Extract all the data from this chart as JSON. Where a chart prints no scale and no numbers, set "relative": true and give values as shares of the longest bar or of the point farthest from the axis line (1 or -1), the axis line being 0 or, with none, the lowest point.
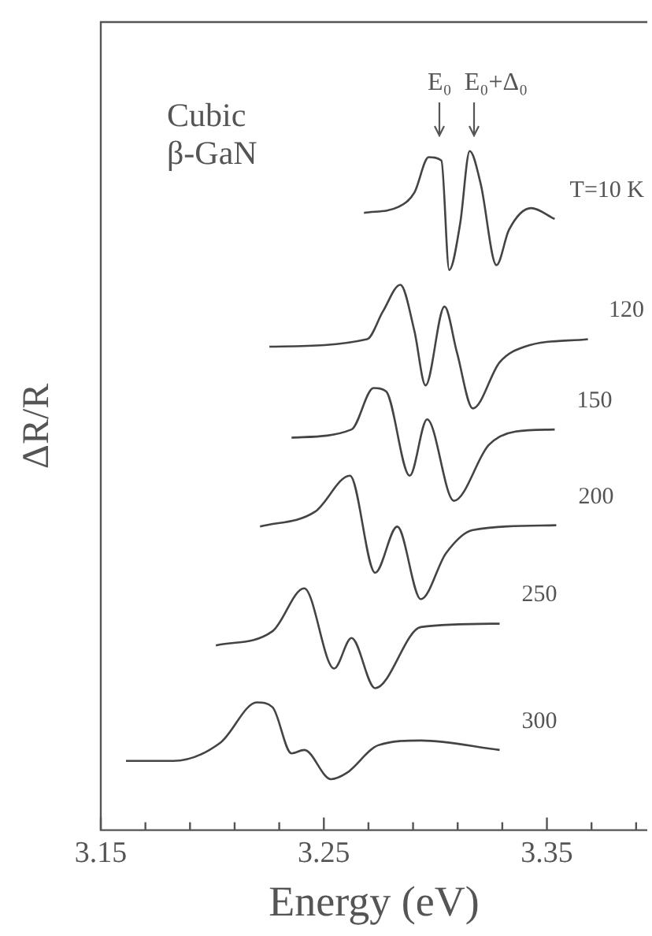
{
  "chart_data": {
    "type": "line",
    "xlabel": "Energy (eV)",
    "ylabel": "ΔR/R",
    "relative": true,
    "legend": false,
    "marker": "none",
    "grid": false,
    "xlim": [
      3.15,
      3.395
    ],
    "xticks": [
      3.15,
      {
        "value": 3.17,
        "label": null
      },
      {
        "value": 3.19,
        "label": null
      },
      {
        "value": 3.21,
        "label": null
      },
      {
        "value": 3.23,
        "label": null
      },
      3.25,
      {
        "value": 3.27,
        "label": null
      },
      {
        "value": 3.29,
        "label": null
      },
      {
        "value": 3.31,
        "label": null
      },
      {
        "value": 3.33,
        "label": null
      },
      3.35,
      {
        "value": 3.37,
        "label": null
      },
      {
        "value": 3.39,
        "label": null
      }
    ],
    "annotations": [
      "Cubic β-GaN",
      "E₀",
      "E₀+Δ₀"
    ],
    "series": [
      {
        "name": "T=10 K",
        "color": "#444444",
        "x": [
          3.268,
          3.2836,
          3.2906,
          3.297,
          3.3027,
          3.3062,
          3.3111,
          3.3154,
          3.3203,
          3.3274,
          3.333,
          3.3429,
          3.3535
        ],
        "values": [
          0.909,
          0.918,
          0.939,
          0.991,
          0.986,
          0.825,
          0.893,
          1.0,
          0.952,
          0.832,
          0.884,
          0.916,
          0.9
        ]
      },
      {
        "name": "120",
        "color": "#444444",
        "x": [
          3.2256,
          3.2694,
          3.2765,
          3.2843,
          3.2906,
          3.2956,
          3.3041,
          3.3097,
          3.3168,
          3.3288,
          3.3401,
          3.3684
        ],
        "values": [
          0.712,
          0.723,
          0.764,
          0.803,
          0.735,
          0.655,
          0.771,
          0.703,
          0.621,
          0.689,
          0.712,
          0.723
        ]
      },
      {
        "name": "150",
        "color": "#444444",
        "x": [
          3.2355,
          3.2624,
          3.2723,
          3.2779,
          3.2885,
          3.2963,
          3.3083,
          3.3239,
          3.3359,
          3.3535
        ],
        "values": [
          0.578,
          0.59,
          0.651,
          0.646,
          0.522,
          0.605,
          0.485,
          0.567,
          0.587,
          0.59
        ]
      },
      {
        "name": "200",
        "color": "#444444",
        "x": [
          3.2214,
          3.2461,
          3.2617,
          3.273,
          3.2829,
          3.2935,
          3.3048,
          3.3168,
          3.3542
        ],
        "values": [
          0.447,
          0.469,
          0.522,
          0.379,
          0.447,
          0.34,
          0.408,
          0.442,
          0.449
        ]
      },
      {
        "name": "250",
        "color": "#444444",
        "x": [
          3.2016,
          3.227,
          3.2412,
          3.2546,
          3.2624,
          3.273,
          3.2935,
          3.3288
        ],
        "values": [
          0.272,
          0.293,
          0.356,
          0.238,
          0.283,
          0.209,
          0.299,
          0.304
        ]
      },
      {
        "name": "300",
        "color": "#444444",
        "x": [
          3.1613,
          3.1825,
          3.2037,
          3.22,
          3.227,
          3.2355,
          3.2412,
          3.2532,
          3.2602,
          3.2744,
          3.2935,
          3.3288
        ],
        "values": [
          0.102,
          0.102,
          0.129,
          0.188,
          0.181,
          0.113,
          0.118,
          0.075,
          0.084,
          0.125,
          0.132,
          0.118
        ]
      }
    ]
  }
}
